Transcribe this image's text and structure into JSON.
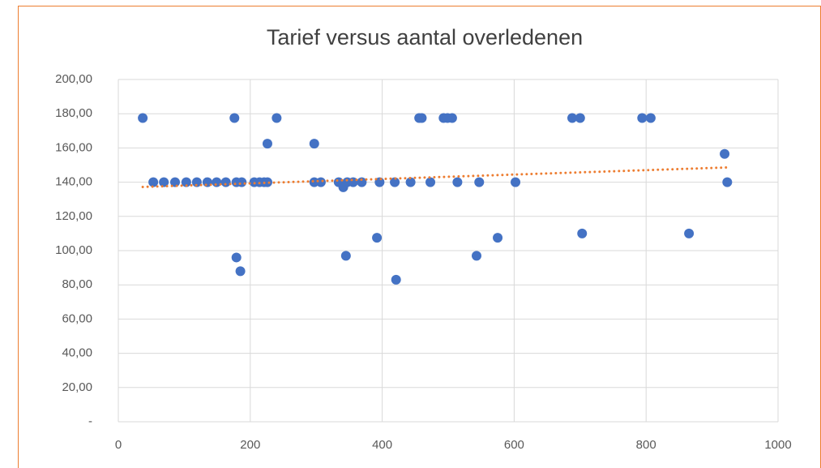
{
  "chart_data": {
    "type": "scatter",
    "title": "Tarief versus aantal overledenen",
    "series": [
      {
        "color": "#4472c4",
        "x": [
          37,
          176,
          240,
          456,
          460,
          493,
          499,
          506,
          688,
          700,
          794,
          807,
          226,
          297,
          919,
          53,
          69,
          86,
          103,
          119,
          135,
          149,
          163,
          179,
          187,
          206,
          214,
          221,
          226,
          297,
          307,
          334,
          347,
          356,
          369,
          396,
          419,
          443,
          473,
          514,
          547,
          602,
          923,
          341,
          179,
          185,
          345,
          392,
          421,
          543,
          575,
          703,
          865
        ],
        "values": [
          177.5,
          177.5,
          177.5,
          177.5,
          177.5,
          177.5,
          177.5,
          177.5,
          177.5,
          177.5,
          177.5,
          177.5,
          162.5,
          162.5,
          156.5,
          140,
          140,
          140,
          140,
          140,
          140,
          140,
          140,
          140,
          140,
          140,
          140,
          140,
          140,
          140,
          140,
          140,
          140,
          140,
          140,
          140,
          140,
          140,
          140,
          140,
          140,
          140,
          140,
          137,
          96,
          88,
          97,
          107.5,
          83,
          97,
          107.5,
          110,
          110
        ]
      }
    ],
    "trendline": {
      "color": "#ed7d31",
      "x": [
        37,
        923
      ],
      "values": [
        137.2,
        148.6
      ]
    },
    "xlim": [
      0,
      1000
    ],
    "xticks": [
      0,
      200,
      400,
      600,
      800,
      1000
    ],
    "ylim": [
      0,
      200
    ],
    "yticks": [
      {
        "value": 0,
        "label": "-"
      },
      {
        "value": 20,
        "label": "20,00"
      },
      {
        "value": 40,
        "label": "40,00"
      },
      {
        "value": 60,
        "label": "60,00"
      },
      {
        "value": 80,
        "label": "80,00"
      },
      {
        "value": 100,
        "label": "100,00"
      },
      {
        "value": 120,
        "label": "120,00"
      },
      {
        "value": 140,
        "label": "140,00"
      },
      {
        "value": 160,
        "label": "160,00"
      },
      {
        "value": 180,
        "label": "180,00"
      },
      {
        "value": 200,
        "label": "200,00"
      }
    ],
    "grid": true
  }
}
